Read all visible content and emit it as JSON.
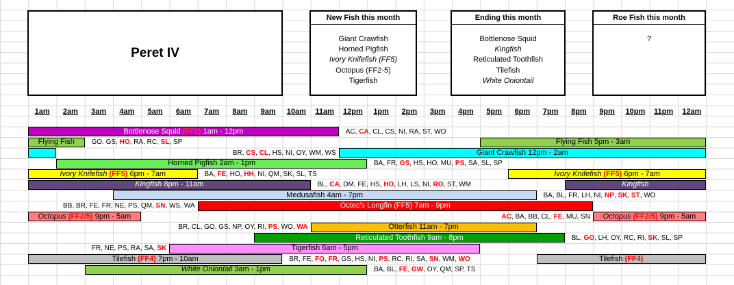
{
  "title": "Peret IV",
  "new_fish": {
    "heading": "New Fish this month",
    "items": [
      "Giant Crawfish",
      "Horned Pigfish",
      "Ivory Knifefish (FF5)",
      "Octopus (FF2-5)",
      "Tigerfish"
    ]
  },
  "ending": {
    "heading": "Ending this month",
    "items": [
      "Bottlenose Squid",
      "Kingfish",
      "Reticulated Toothfish",
      "Tilefish",
      "White Oniontail"
    ]
  },
  "roe": {
    "heading": "Roe Fish this month",
    "items": [
      "?"
    ]
  },
  "hours": [
    "1am",
    "2am",
    "3am",
    "4am",
    "5am",
    "6am",
    "7am",
    "8am",
    "9am",
    "10am",
    "11am",
    "12pm",
    "1pm",
    "2pm",
    "3pm",
    "4pm",
    "5pm",
    "6pm",
    "7pm",
    "8pm",
    "9pm",
    "10pm",
    "11pm",
    "12am"
  ],
  "rows": [
    {
      "bars": [
        {
          "from": 0,
          "to": 11,
          "color": "#c000c0",
          "segs": [
            {
              "t": "Bottlenose Squid ",
              "c": "w"
            },
            {
              "t": "(FF2)",
              "c": "wb"
            },
            {
              "t": "  1am - 12pm",
              "c": "w"
            }
          ]
        }
      ],
      "drops": [
        {
          "at": 11,
          "segs": [
            {
              "t": "AC, "
            },
            {
              "t": "CA",
              "c": "r"
            },
            {
              "t": ", CL, CS, NI, RA, ST, WO"
            }
          ]
        }
      ]
    },
    {
      "bars": [
        {
          "from": 0,
          "to": 2,
          "color": "#92d050",
          "segs": [
            {
              "t": "Flying Fish"
            }
          ]
        },
        {
          "from": 16,
          "to": 24,
          "color": "#92d050",
          "segs": [
            {
              "t": "Flying Fish  5pm - 3am"
            }
          ]
        }
      ],
      "drops": [
        {
          "at": 2,
          "segs": [
            {
              "t": "GO. GS, "
            },
            {
              "t": "HO",
              "c": "r"
            },
            {
              "t": ", RA, RC, "
            },
            {
              "t": "SL",
              "c": "r"
            },
            {
              "t": ", SP"
            }
          ]
        }
      ]
    },
    {
      "bars": [
        {
          "from": 0,
          "to": 1,
          "color": "#00ffff",
          "segs": []
        },
        {
          "from": 11,
          "to": 24,
          "color": "#00ffff",
          "segs": [
            {
              "t": "Giant Crawfish  12pm - 2am"
            }
          ]
        }
      ],
      "drops": [
        {
          "end": 11,
          "segs": [
            {
              "t": "BR, "
            },
            {
              "t": "CS",
              "c": "r"
            },
            {
              "t": ", "
            },
            {
              "t": "CL",
              "c": "r"
            },
            {
              "t": ", HS, NI, OY, WM, WS"
            }
          ]
        }
      ]
    },
    {
      "bars": [
        {
          "from": 1,
          "to": 12,
          "color": "#66ee55",
          "segs": [
            {
              "t": "Horned Pigfish  2am - 1pm"
            }
          ]
        }
      ],
      "drops": [
        {
          "at": 12,
          "segs": [
            {
              "t": "BA, FR, "
            },
            {
              "t": "GS",
              "c": "r"
            },
            {
              "t": ", HS, HO, MU, "
            },
            {
              "t": "PS",
              "c": "r"
            },
            {
              "t": ", SA, SL, SP"
            }
          ]
        }
      ]
    },
    {
      "bars": [
        {
          "from": 0,
          "to": 6,
          "color": "#ffff00",
          "segs": [
            {
              "t": "Ivory Knifefish ",
              "c": "i"
            },
            {
              "t": "(FF5)",
              "c": "r"
            },
            {
              "t": "  6pm - 7am"
            }
          ]
        },
        {
          "from": 17,
          "to": 24,
          "color": "#ffff00",
          "segs": [
            {
              "t": "Ivory Knifefish ",
              "c": "i"
            },
            {
              "t": "(FF5)",
              "c": "r"
            },
            {
              "t": "  6pm - 7am"
            }
          ]
        }
      ],
      "drops": [
        {
          "at": 6,
          "segs": [
            {
              "t": "BA, "
            },
            {
              "t": "FE",
              "c": "r"
            },
            {
              "t": ", HO, "
            },
            {
              "t": "HH",
              "c": "r"
            },
            {
              "t": ", NI, QM, SK, SL, TS"
            }
          ]
        }
      ]
    },
    {
      "bars": [
        {
          "from": 0,
          "to": 10,
          "color": "#60497a",
          "segs": [
            {
              "t": "Kingfish",
              "c": "wi"
            },
            {
              "t": "  8pm - 11am",
              "c": "w"
            }
          ]
        },
        {
          "from": 19,
          "to": 24,
          "color": "#60497a",
          "segs": [
            {
              "t": "Kingfish",
              "c": "wi"
            }
          ]
        }
      ],
      "drops": [
        {
          "at": 10,
          "segs": [
            {
              "t": "BL, "
            },
            {
              "t": "CA",
              "c": "r"
            },
            {
              "t": ", DM, FE, HS, "
            },
            {
              "t": "HO",
              "c": "r"
            },
            {
              "t": ", LH, LS, NI, "
            },
            {
              "t": "RO",
              "c": "r"
            },
            {
              "t": ", ST, WM"
            }
          ]
        }
      ]
    },
    {
      "bars": [
        {
          "from": 3,
          "to": 18,
          "color": "#c5d9f1",
          "segs": [
            {
              "t": "Medusafish  4am - 7pm"
            }
          ]
        }
      ],
      "drops": [
        {
          "at": 18,
          "segs": [
            {
              "t": "BA, BL, FR, LH, NI, "
            },
            {
              "t": "NP",
              "c": "r"
            },
            {
              "t": ", "
            },
            {
              "t": "SK",
              "c": "r"
            },
            {
              "t": ", "
            },
            {
              "t": "ST",
              "c": "r"
            },
            {
              "t": ", WO"
            }
          ]
        }
      ]
    },
    {
      "bars": [
        {
          "from": 6,
          "to": 20,
          "color": "#ff0000",
          "segs": [
            {
              "t": "Octec's Longfin (FF5)  7am - 9pm",
              "c": "w"
            }
          ]
        }
      ],
      "drops": [
        {
          "end": 6,
          "segs": [
            {
              "t": "BB, BR, FE, FR, NE, PS, QM, "
            },
            {
              "t": "SN",
              "c": "r"
            },
            {
              "t": ", WS, WA"
            }
          ]
        }
      ]
    },
    {
      "bars": [
        {
          "from": 0,
          "to": 4,
          "color": "#ff7c80",
          "segs": [
            {
              "t": "Octopus ",
              "c": "i"
            },
            {
              "t": "(FF2/5)",
              "c": "r"
            },
            {
              "t": "  9pm - 5am"
            }
          ]
        },
        {
          "from": 20,
          "to": 24,
          "color": "#ff7c80",
          "segs": [
            {
              "t": "Octopus ",
              "c": "i"
            },
            {
              "t": "(FF2/5)",
              "c": "r"
            },
            {
              "t": "  9pm - 5am"
            }
          ]
        }
      ],
      "drops": [
        {
          "end": 20,
          "segs": [
            {
              "t": "AC",
              "c": "r"
            },
            {
              "t": ", BA, BB, CL, "
            },
            {
              "t": "FE",
              "c": "r"
            },
            {
              "t": ", MU, SN"
            }
          ]
        }
      ]
    },
    {
      "bars": [
        {
          "from": 10,
          "to": 18,
          "color": "#ffc000",
          "segs": [
            {
              "t": "Otterfish  11am - 7pm"
            }
          ]
        }
      ],
      "drops": [
        {
          "end": 10,
          "segs": [
            {
              "t": "BR, CL, GO, GS, NP, OY, RI, "
            },
            {
              "t": "PS",
              "c": "r"
            },
            {
              "t": ", WO, "
            },
            {
              "t": "WA",
              "c": "r"
            }
          ]
        }
      ]
    },
    {
      "bars": [
        {
          "from": 8,
          "to": 19,
          "color": "#00a000",
          "segs": [
            {
              "t": "Reticulated Toothfish  9am - 8pm",
              "c": "w"
            }
          ]
        }
      ],
      "drops": [
        {
          "at": 19,
          "segs": [
            {
              "t": "BL, "
            },
            {
              "t": "GO",
              "c": "r"
            },
            {
              "t": ", LH, OY, RC, RI, "
            },
            {
              "t": "SK",
              "c": "r"
            },
            {
              "t": ", SL, SP"
            }
          ]
        }
      ]
    },
    {
      "bars": [
        {
          "from": 5,
          "to": 16,
          "color": "#ff8fff",
          "segs": [
            {
              "t": "Tigerfish  6am - 5pm"
            }
          ]
        }
      ],
      "drops": [
        {
          "end": 5,
          "segs": [
            {
              "t": "FR, NE, PS, RA, SA, "
            },
            {
              "t": "SK",
              "c": "r"
            }
          ]
        }
      ]
    },
    {
      "bars": [
        {
          "from": 0,
          "to": 9,
          "color": "#bfbfbf",
          "segs": [
            {
              "t": "Tilefish "
            },
            {
              "t": "(FF4)",
              "c": "r"
            },
            {
              "t": "  7pm - 10am"
            }
          ]
        },
        {
          "from": 18,
          "to": 24,
          "color": "#bfbfbf",
          "segs": [
            {
              "t": "Tilefish "
            },
            {
              "t": "(FF4)",
              "c": "r"
            }
          ]
        }
      ],
      "drops": [
        {
          "at": 9,
          "segs": [
            {
              "t": "BR, FE, "
            },
            {
              "t": "FO",
              "c": "r"
            },
            {
              "t": ", "
            },
            {
              "t": "FR",
              "c": "r"
            },
            {
              "t": ", GS, HS, NI, "
            },
            {
              "t": "PS",
              "c": "r"
            },
            {
              "t": ", RC, RI, SA, "
            },
            {
              "t": "SN",
              "c": "r"
            },
            {
              "t": ", WM, "
            },
            {
              "t": "WO",
              "c": "r"
            }
          ]
        }
      ]
    },
    {
      "bars": [
        {
          "from": 2,
          "to": 12,
          "color": "#92d050",
          "segs": [
            {
              "t": "White Oniontail",
              "c": "i"
            },
            {
              "t": "  3am - 1pm"
            }
          ]
        }
      ],
      "drops": [
        {
          "at": 12,
          "segs": [
            {
              "t": "BA, BL, "
            },
            {
              "t": "FE",
              "c": "r"
            },
            {
              "t": ", "
            },
            {
              "t": "GW",
              "c": "r"
            },
            {
              "t": ", OY, QM, SP, TS"
            }
          ]
        }
      ]
    }
  ]
}
